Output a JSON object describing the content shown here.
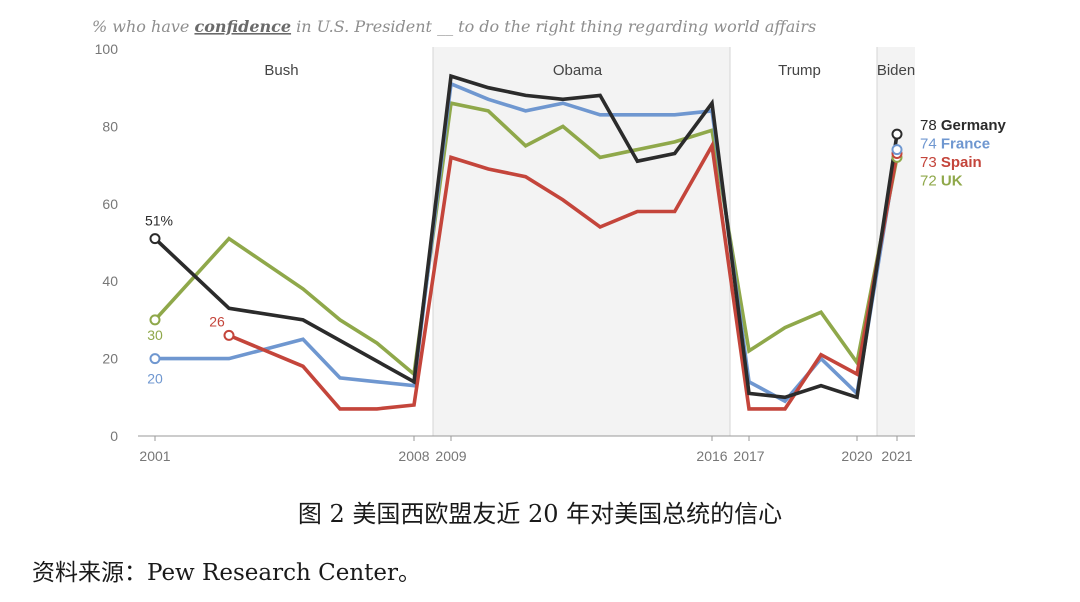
{
  "chart_data": {
    "type": "line",
    "title": "% who have confidence in U.S. President __ to do the right thing regarding world affairs",
    "title_parts": {
      "before": "% who have ",
      "emph": "confidence",
      "after": " in U.S. President __ to do the right thing regarding world affairs"
    },
    "ylim": [
      0,
      100
    ],
    "yticks": [
      0,
      20,
      40,
      60,
      80,
      100
    ],
    "xticks": [
      {
        "label": "2001",
        "value": 2001
      },
      {
        "label": "2008",
        "value": 2008
      },
      {
        "label": "2009",
        "value": 2009
      },
      {
        "label": "2016",
        "value": 2016
      },
      {
        "label": "2017",
        "value": 2017
      },
      {
        "label": "2020",
        "value": 2020
      },
      {
        "label": "2021",
        "value": 2021
      }
    ],
    "grid": false,
    "eras": [
      {
        "name": "Bush",
        "start": 2001,
        "end": 2008,
        "shaded": false
      },
      {
        "name": "Obama",
        "start": 2009,
        "end": 2016,
        "shaded": true
      },
      {
        "name": "Trump",
        "start": 2017,
        "end": 2020,
        "shaded": false
      },
      {
        "name": "Biden",
        "start": 2021,
        "end": 2021,
        "shaded": true
      }
    ],
    "series": [
      {
        "name": "UK",
        "color": "#8fa84a",
        "x": [
          2001,
          2003,
          2005,
          2006,
          2007,
          2008,
          2009,
          2010,
          2011,
          2012,
          2013,
          2014,
          2015,
          2016,
          2017,
          2018,
          2019,
          2020,
          2021
        ],
        "y": [
          30,
          51,
          38,
          30,
          24,
          16,
          86,
          84,
          75,
          80,
          72,
          74,
          76,
          79,
          22,
          28,
          32,
          19,
          72
        ],
        "start_label": "30",
        "end_value": "72"
      },
      {
        "name": "France",
        "color": "#6f97d0",
        "x": [
          2001,
          2003,
          2005,
          2006,
          2007,
          2008,
          2009,
          2010,
          2011,
          2012,
          2013,
          2014,
          2015,
          2016,
          2017,
          2018,
          2019,
          2020,
          2021
        ],
        "y": [
          20,
          20,
          25,
          15,
          14,
          13,
          91,
          87,
          84,
          86,
          83,
          83,
          83,
          84,
          14,
          9,
          20,
          11,
          74
        ],
        "start_label": "20",
        "end_value": "74"
      },
      {
        "name": "Spain",
        "color": "#c4453b",
        "x": [
          2003,
          2005,
          2006,
          2007,
          2008,
          2009,
          2010,
          2011,
          2012,
          2013,
          2014,
          2015,
          2016,
          2017,
          2018,
          2019,
          2020,
          2021
        ],
        "y": [
          26,
          18,
          7,
          7,
          8,
          72,
          69,
          67,
          61,
          54,
          58,
          58,
          75,
          7,
          7,
          21,
          16,
          73
        ],
        "start_label": "26",
        "end_value": "73"
      },
      {
        "name": "Germany",
        "color": "#2b2b2b",
        "x": [
          2001,
          2003,
          2005,
          2008,
          2009,
          2010,
          2011,
          2012,
          2013,
          2014,
          2015,
          2016,
          2017,
          2018,
          2019,
          2020,
          2021
        ],
        "y": [
          51,
          33,
          30,
          14,
          93,
          90,
          88,
          87,
          88,
          71,
          73,
          86,
          11,
          10,
          13,
          10,
          78
        ],
        "start_label": "51%",
        "end_value": "78"
      }
    ]
  },
  "caption": "图 2  美国西欧盟友近 20 年对美国总统的信心",
  "source": "资料来源：Pew Research Center。"
}
